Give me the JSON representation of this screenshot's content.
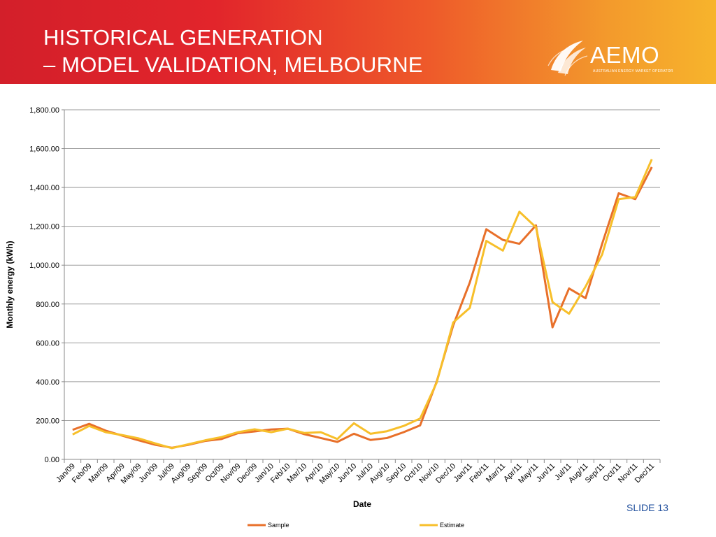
{
  "slide": {
    "title_line1": "HISTORICAL GENERATION",
    "title_line2": "– MODEL VALIDATION, MELBOURNE",
    "logo_text": "AEMO",
    "logo_subtitle": "AUSTRALIAN ENERGY MARKET OPERATOR",
    "slide_number": "SLIDE 13",
    "colors": {
      "banner_start": "#d31f2a",
      "banner_end": "#f7b42c",
      "slide_number": "#1f4e9c"
    }
  },
  "chart_data": {
    "type": "line",
    "title": "",
    "xlabel": "Date",
    "ylabel": "Monthly energy (kWh)",
    "ylim": [
      0,
      1800
    ],
    "yticks": [
      "0.00",
      "200.00",
      "400.00",
      "600.00",
      "800.00",
      "1,000.00",
      "1,200.00",
      "1,400.00",
      "1,600.00",
      "1,800.00"
    ],
    "ytick_values": [
      0,
      200,
      400,
      600,
      800,
      1000,
      1200,
      1400,
      1600,
      1800
    ],
    "grid": true,
    "legend_position": "bottom",
    "categories": [
      "Jan/09",
      "Feb/09",
      "Mar/09",
      "Apr/09",
      "May/09",
      "Jun/09",
      "Jul/09",
      "Aug/09",
      "Sep/09",
      "Oct/09",
      "Nov/09",
      "Dec/09",
      "Jan/10",
      "Feb/10",
      "Mar/10",
      "Apr/10",
      "May/10",
      "Jun/10",
      "Jul/10",
      "Aug/10",
      "Sep/10",
      "Oct/10",
      "Nov/10",
      "Dec/10",
      "Jan/11",
      "Feb/11",
      "Mar/11",
      "Apr/11",
      "May/11",
      "Jun/11",
      "Jul/11",
      "Aug/11",
      "Sep/11",
      "Oct/11",
      "Nov/11",
      "Dec/11"
    ],
    "series": [
      {
        "name": "Sample",
        "color": "#e8702a",
        "values": [
          152,
          183,
          148,
          122,
          98,
          75,
          60,
          75,
          95,
          105,
          135,
          144,
          154,
          158,
          130,
          110,
          90,
          132,
          100,
          110,
          140,
          175,
          400,
          690,
          910,
          1185,
          1130,
          1110,
          1205,
          680,
          880,
          830,
          1110,
          1370,
          1340,
          1505
        ]
      },
      {
        "name": "Estimate",
        "color": "#f7bf2a",
        "values": [
          128,
          172,
          140,
          125,
          108,
          82,
          58,
          78,
          98,
          115,
          140,
          155,
          140,
          158,
          136,
          140,
          105,
          186,
          132,
          145,
          172,
          210,
          395,
          705,
          780,
          1125,
          1075,
          1275,
          1195,
          810,
          750,
          890,
          1055,
          1340,
          1350,
          1545
        ]
      }
    ]
  }
}
